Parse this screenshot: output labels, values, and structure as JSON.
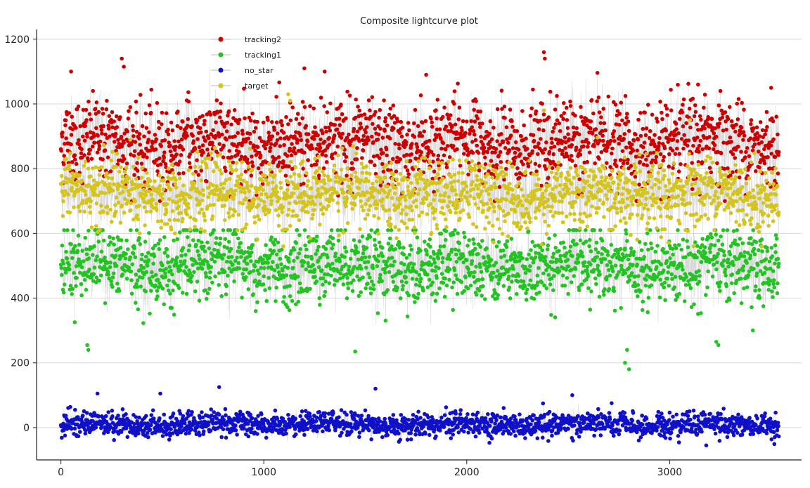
{
  "chart_data": {
    "type": "scatter",
    "title": "Composite lightcurve plot",
    "xlabel": "",
    "ylabel": "",
    "xlim": [
      -120,
      3650
    ],
    "ylim": [
      -100,
      1230
    ],
    "xticks": [
      0,
      1000,
      2000,
      3000
    ],
    "yticks": [
      0,
      200,
      400,
      600,
      800,
      1000,
      1200
    ],
    "grid": "horizontal",
    "legend_position": "top-left",
    "n_points": 3540,
    "markers": "circle",
    "series": [
      {
        "name": "tracking2",
        "color": "#cc0000",
        "center": 880,
        "spread": 75,
        "min": 700,
        "max": 1165,
        "outliers": [
          [
            50,
            1100
          ],
          [
            300,
            1140
          ],
          [
            310,
            1115
          ],
          [
            1200,
            1110
          ],
          [
            1300,
            1100
          ],
          [
            1800,
            1090
          ],
          [
            2380,
            1160
          ],
          [
            2385,
            1140
          ],
          [
            3140,
            1060
          ],
          [
            3500,
            1050
          ]
        ]
      },
      {
        "name": "tracking1",
        "color": "#22c322",
        "center": 500,
        "spread": 65,
        "min": 175,
        "max": 650,
        "outliers": [
          [
            130,
            255
          ],
          [
            135,
            240
          ],
          [
            1450,
            235
          ],
          [
            2780,
            200
          ],
          [
            2800,
            180
          ],
          [
            2790,
            240
          ],
          [
            3230,
            265
          ],
          [
            3240,
            255
          ],
          [
            3410,
            300
          ]
        ]
      },
      {
        "name": "no_star",
        "color": "#0f10c8",
        "center": 10,
        "spread": 22,
        "min": -60,
        "max": 130,
        "outliers": [
          [
            780,
            125
          ],
          [
            1550,
            120
          ],
          [
            180,
            105
          ],
          [
            490,
            105
          ],
          [
            3180,
            -55
          ],
          [
            2520,
            100
          ]
        ]
      },
      {
        "name": "target",
        "color": "#d4c41c",
        "center": 720,
        "spread": 60,
        "min": 560,
        "max": 1030,
        "outliers": [
          [
            1120,
            1030
          ],
          [
            1130,
            1010
          ],
          [
            2380,
            980
          ],
          [
            3100,
            950
          ]
        ]
      }
    ]
  }
}
